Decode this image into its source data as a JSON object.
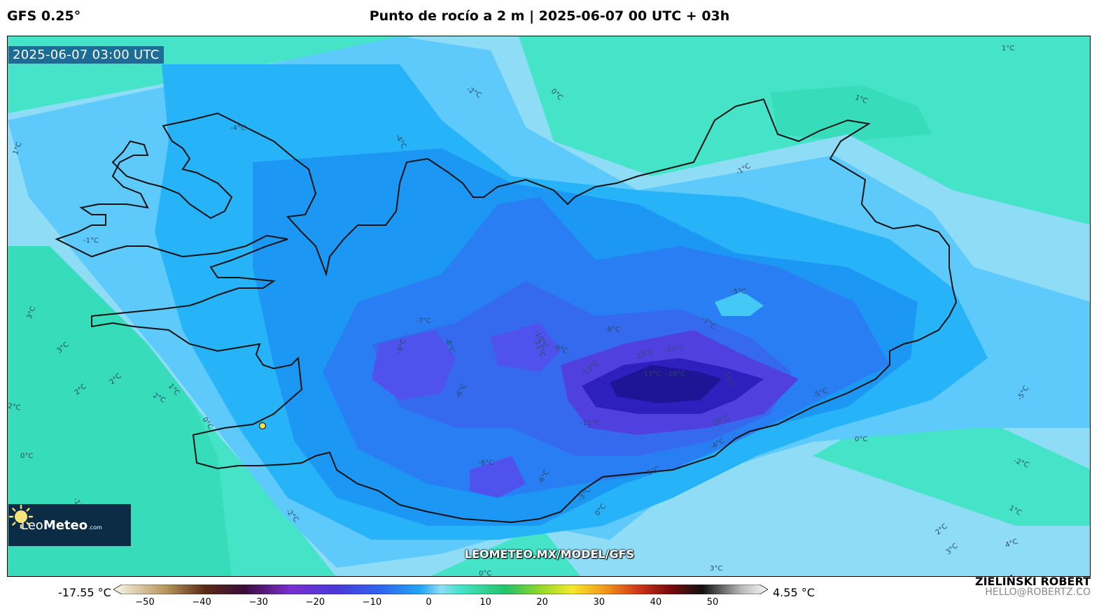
{
  "header": {
    "model": "GFS 0.25°",
    "title": "Punto de rocío a 2 m | 2025-06-07 00 UTC + 03h"
  },
  "map": {
    "timestamp": "2025-06-07 03:00 UTC",
    "watermark": "LEOMETEO.MX/MODEL/GFS",
    "logo": {
      "name_light": "Leo",
      "name_bold": "Meteo",
      "suffix": ".com"
    },
    "contour_labels": [
      "1°C",
      "0°C",
      "-2°C",
      "-4°C",
      "-4°C",
      "1°C",
      "-1°C",
      "1°C",
      "-1°C",
      "3°C",
      "3°C",
      "2°C",
      "2°C",
      "2°C",
      "1°C",
      "2°C",
      "0°C",
      "0°C",
      "-5°C",
      "-7°C",
      "-7°C",
      "-8°C",
      "-9°C",
      "-8°C",
      "-10°C",
      "-11°C",
      "-9°C",
      "-12°C",
      "-13°C",
      "-13°C",
      "-17°C",
      "-16°C",
      "-15°C",
      "-11°C",
      "-10°C",
      "-6°C",
      "-5°C",
      "-4°C",
      "-8°C",
      "-6°C",
      "-3°C",
      "0°C",
      "-1°C",
      "-5°C",
      "-2°C",
      "0°C",
      "-2°C",
      "1°C",
      "2°C",
      "3°C",
      "4°C",
      "3°C",
      "0°C",
      "-1°C"
    ],
    "colors": {
      "land_warm": "#45e3c8",
      "cold_light": "#8fdcf7",
      "cold_mid": "#1fb6f5",
      "cold_deep": "#2f7df2",
      "coldest": "#3a2fc9"
    }
  },
  "colorbar": {
    "min_label": "-17.55 °C",
    "max_label": "4.55 °C",
    "ticks": [
      "−50",
      "−40",
      "−30",
      "−20",
      "−10",
      "0",
      "10",
      "20",
      "30",
      "40",
      "50"
    ]
  },
  "credit": {
    "name": "ZIELIŃSKI ROBERT",
    "email": "HELLO@ROBERTZ.CO"
  }
}
